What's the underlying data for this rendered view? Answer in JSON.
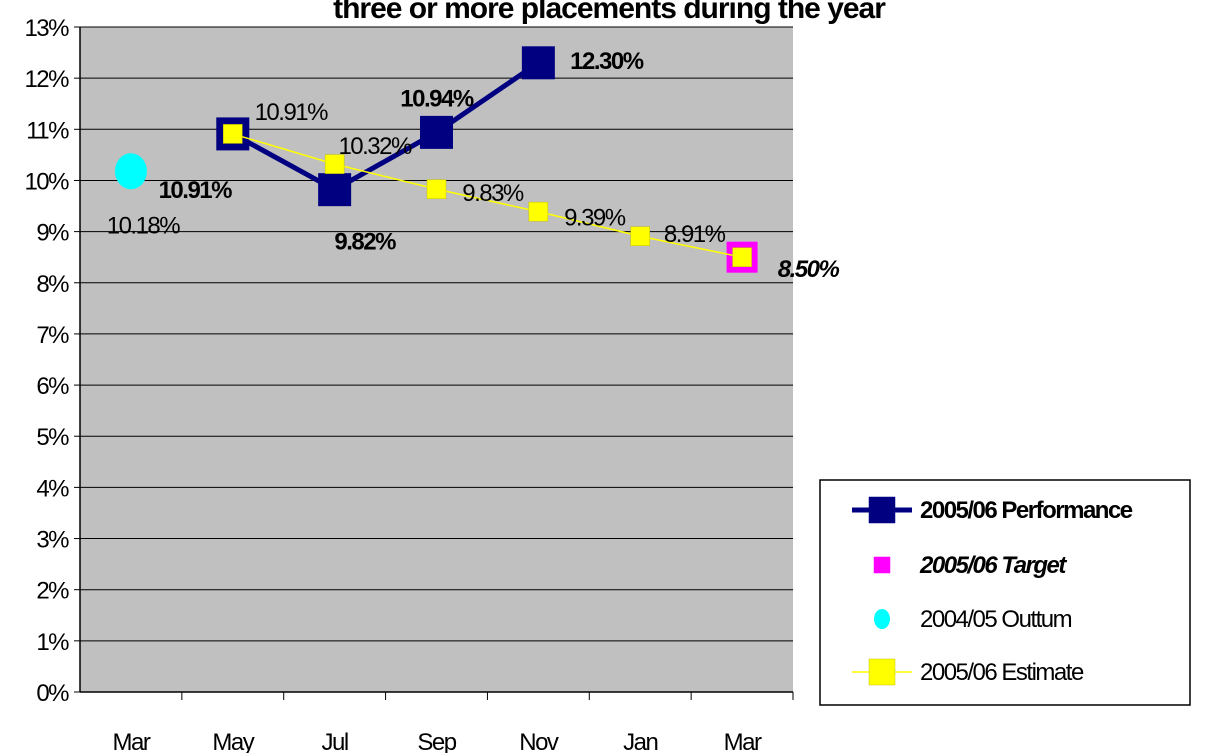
{
  "chart_data": {
    "type": "line",
    "title": "three or more placements during the year",
    "categories": [
      "Mar",
      "May",
      "Jul",
      "Sep",
      "Nov",
      "Jan",
      "Mar"
    ],
    "ylim": [
      0,
      13
    ],
    "yticks": [
      {
        "value": 0,
        "label": "0%"
      },
      {
        "value": 1,
        "label": "1%"
      },
      {
        "value": 2,
        "label": "2%"
      },
      {
        "value": 3,
        "label": "3%"
      },
      {
        "value": 4,
        "label": "4%"
      },
      {
        "value": 5,
        "label": "5%"
      },
      {
        "value": 6,
        "label": "6%"
      },
      {
        "value": 7,
        "label": "7%"
      },
      {
        "value": 8,
        "label": "8%"
      },
      {
        "value": 9,
        "label": "9%"
      },
      {
        "value": 10,
        "label": "10%"
      },
      {
        "value": 11,
        "label": "11%"
      },
      {
        "value": 12,
        "label": "12%"
      },
      {
        "value": 13,
        "label": "13%"
      }
    ],
    "grid": true,
    "legend": "right",
    "series": [
      {
        "name": "2005/06 Performance",
        "color": "#000080",
        "values": [
          null,
          10.91,
          9.82,
          10.94,
          12.3,
          null,
          null
        ],
        "value_labels": [
          null,
          "10.91%",
          "9.82%",
          "10.94%",
          "12.30%",
          null,
          null
        ]
      },
      {
        "name": "2005/06 Target",
        "color": "#ff00ff",
        "values": [
          null,
          null,
          null,
          null,
          null,
          null,
          8.5
        ],
        "value_labels": [
          null,
          null,
          null,
          null,
          null,
          null,
          "8.50%"
        ]
      },
      {
        "name": "2004/05 Outtum",
        "color": "#00ffff",
        "values": [
          10.18,
          null,
          null,
          null,
          null,
          null,
          null
        ],
        "value_labels": [
          "10.18%",
          null,
          null,
          null,
          null,
          null,
          null
        ]
      },
      {
        "name": "2005/06 Estimate",
        "color": "#ffff00",
        "values": [
          null,
          10.91,
          10.32,
          9.83,
          9.39,
          8.91,
          8.5
        ],
        "value_labels": [
          null,
          "10.91%",
          "10.32%",
          "9.83%",
          "9.39%",
          "8.91%",
          null
        ]
      }
    ]
  }
}
